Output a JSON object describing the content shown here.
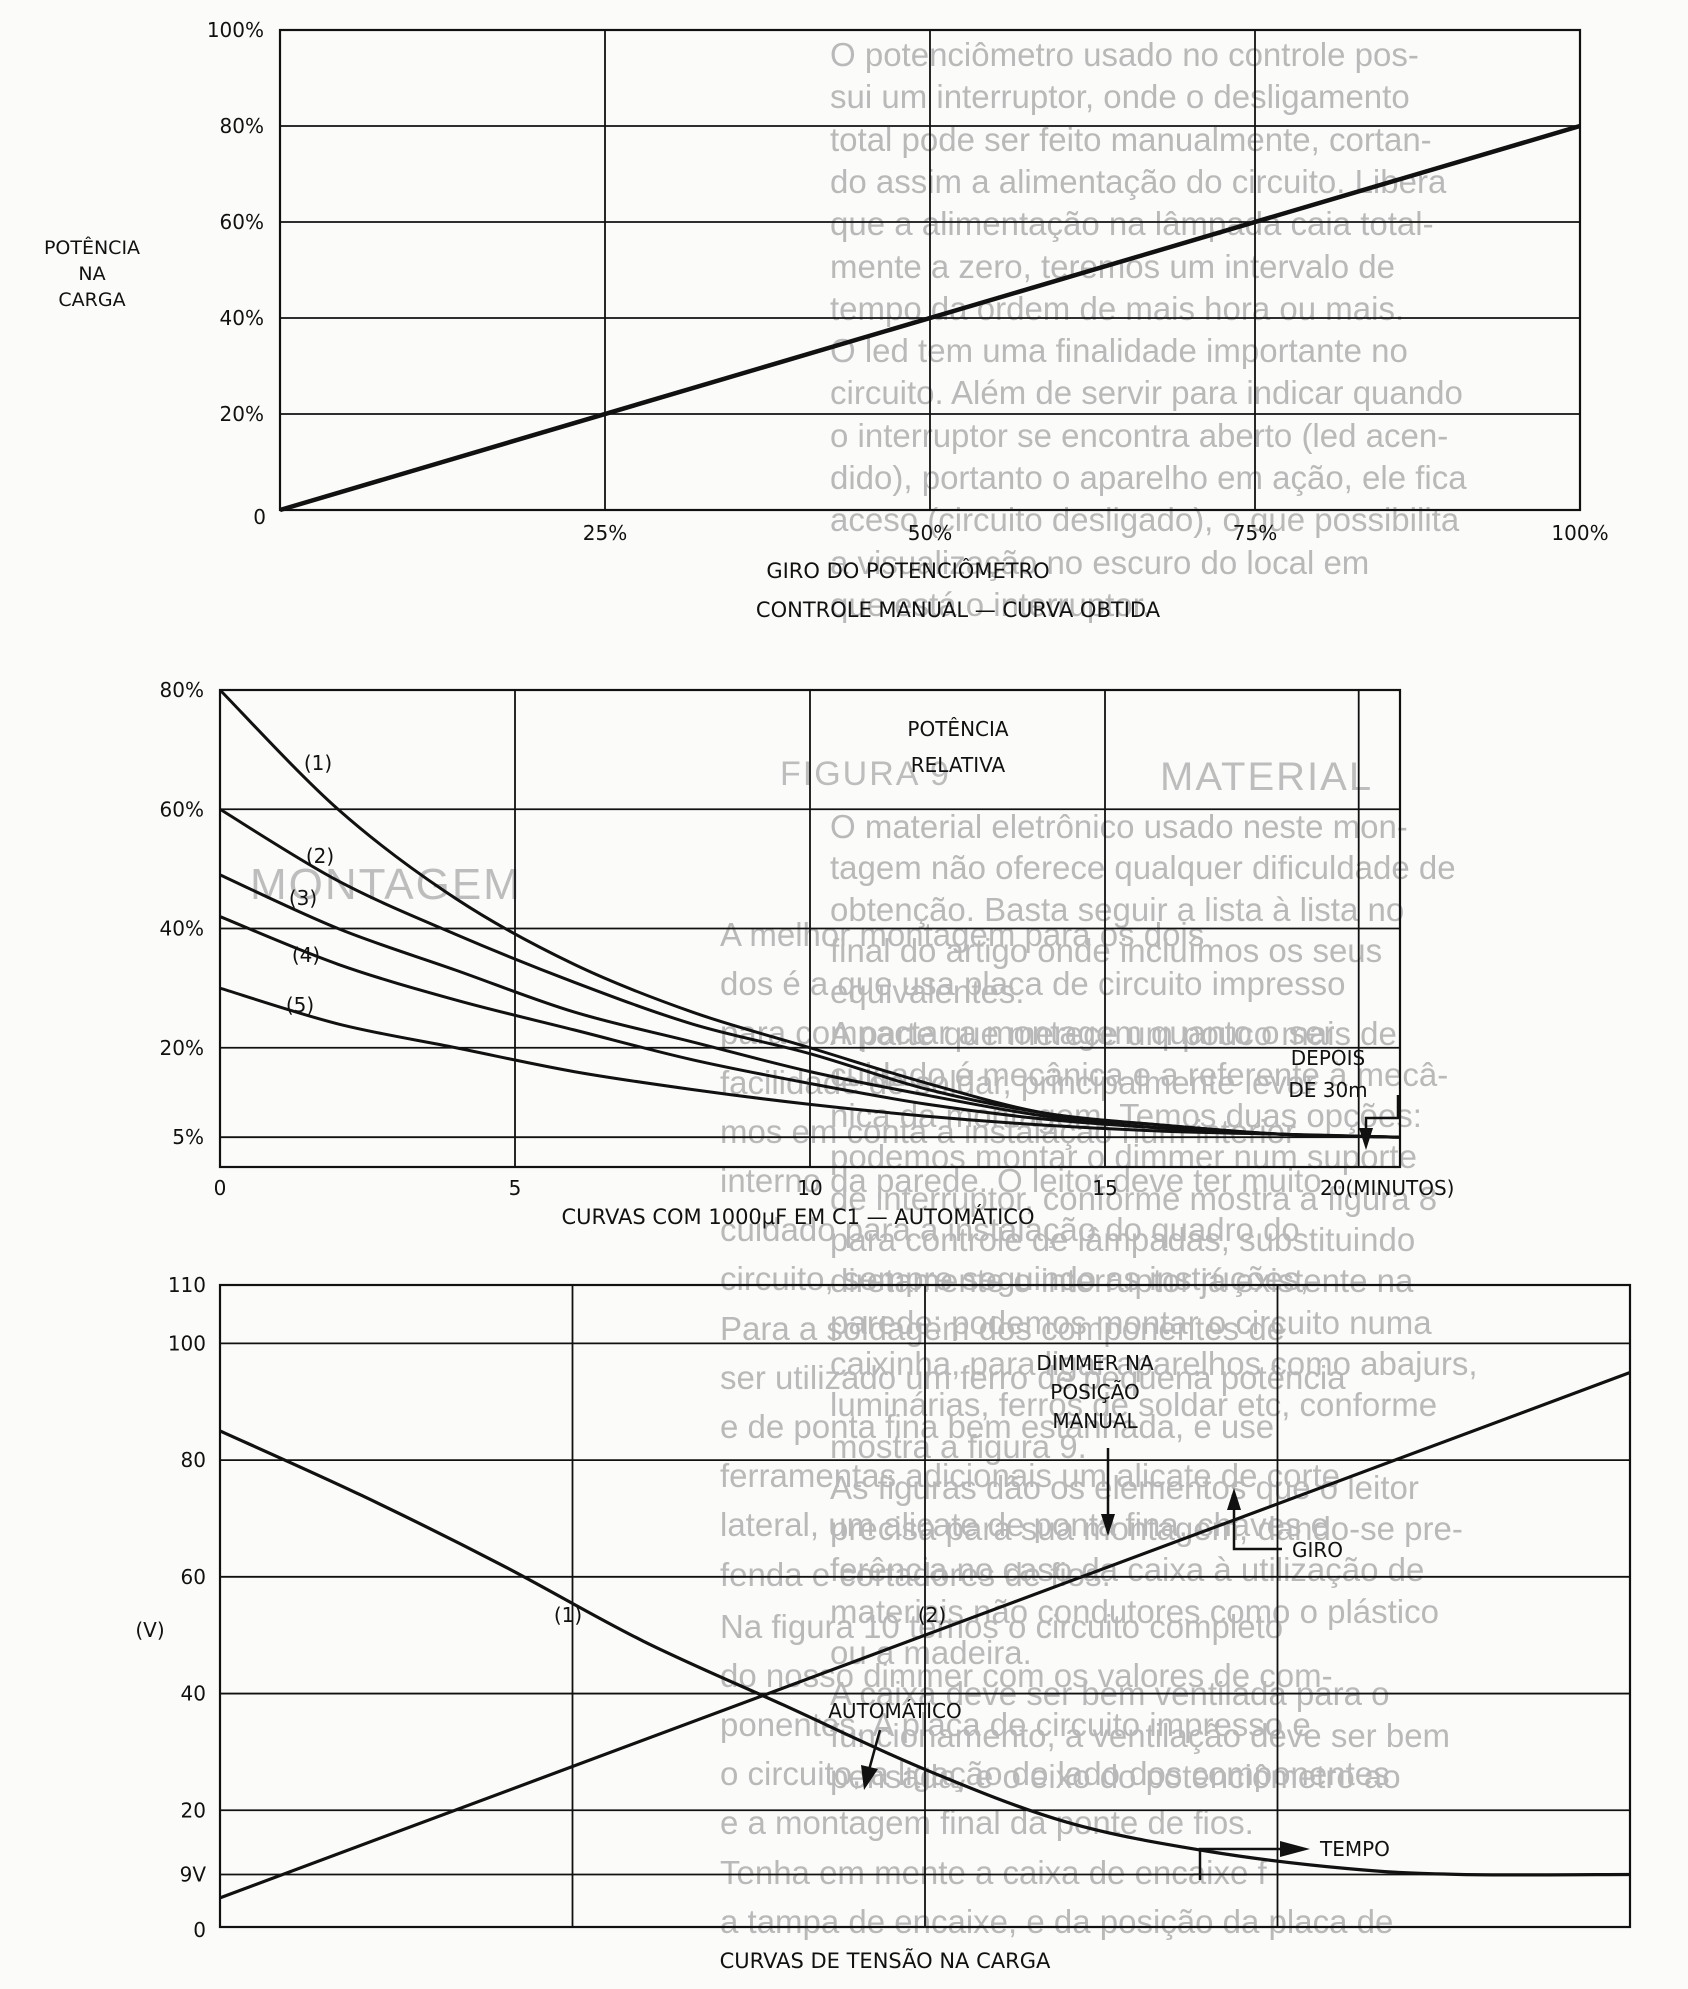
{
  "charts": [
    {
      "type": "line",
      "ylabel": [
        "POTÊNCIA",
        "NA",
        "CARGA"
      ],
      "xlabel": "GIRO DO POTENCIÔMETRO",
      "title": "CONTROLE MANUAL — CURVA OBTIDA",
      "xlim": [
        0,
        100
      ],
      "ylim": [
        0,
        100
      ],
      "x_ticks": [
        {
          "v": 25,
          "t": "25%"
        },
        {
          "v": 50,
          "t": "50%"
        },
        {
          "v": 75,
          "t": "75%"
        },
        {
          "v": 100,
          "t": "100%"
        }
      ],
      "y_ticks": [
        {
          "v": 20,
          "t": "20%"
        },
        {
          "v": 40,
          "t": "40%"
        },
        {
          "v": 60,
          "t": "60%"
        },
        {
          "v": 80,
          "t": "80%"
        },
        {
          "v": 100,
          "t": "100%"
        }
      ],
      "origin_label": "0",
      "series": [
        {
          "x": [
            0,
            100
          ],
          "y": [
            0,
            80
          ]
        }
      ]
    },
    {
      "type": "line",
      "title": "CURVAS COM 1000µF EM C1 — AUTOMÁTICO",
      "annotation_title": [
        "POTÊNCIA",
        "RELATIVA"
      ],
      "annotation_depois": [
        "DEPOIS",
        "DE 30m"
      ],
      "xlim": [
        0,
        20
      ],
      "ylim": [
        0,
        80
      ],
      "x_ticks": [
        {
          "v": 0,
          "t": "0"
        },
        {
          "v": 5,
          "t": "5"
        },
        {
          "v": 10,
          "t": "10"
        },
        {
          "v": 15,
          "t": "15"
        },
        {
          "v": 20,
          "t": "20(MINUTOS)"
        }
      ],
      "y_ticks": [
        {
          "v": 5,
          "t": "5%"
        },
        {
          "v": 20,
          "t": "20%"
        },
        {
          "v": 40,
          "t": "40%"
        },
        {
          "v": 60,
          "t": "60%"
        },
        {
          "v": 80,
          "t": "80%"
        }
      ],
      "series": [
        {
          "name": "(1)",
          "x": [
            0,
            2,
            4,
            6,
            8,
            10,
            12,
            14,
            16,
            18,
            20
          ],
          "y": [
            80,
            60,
            45,
            34,
            26,
            20,
            14,
            9,
            7,
            5.5,
            5
          ]
        },
        {
          "name": "(2)",
          "x": [
            0,
            2,
            4,
            6,
            8,
            10,
            12,
            14,
            16,
            18,
            20
          ],
          "y": [
            60,
            48,
            39,
            31,
            24,
            19,
            13,
            9,
            7,
            5.5,
            5
          ]
        },
        {
          "name": "(3)",
          "x": [
            0,
            2,
            4,
            6,
            8,
            10,
            12,
            14,
            16,
            18,
            20
          ],
          "y": [
            49,
            40,
            33,
            26,
            21,
            16,
            12,
            8.5,
            6.5,
            5.5,
            5
          ]
        },
        {
          "name": "(4)",
          "x": [
            0,
            2,
            4,
            6,
            8,
            10,
            12,
            14,
            16,
            18,
            20
          ],
          "y": [
            42,
            34,
            28,
            23,
            18,
            14,
            10.5,
            8,
            6.5,
            5.5,
            5
          ]
        },
        {
          "name": "(5)",
          "x": [
            0,
            2,
            4,
            6,
            8,
            10,
            12,
            14,
            16,
            18,
            20
          ],
          "y": [
            30,
            24,
            20,
            16,
            13,
            10.5,
            8.5,
            7,
            6,
            5.5,
            5
          ]
        }
      ]
    },
    {
      "type": "line",
      "title": "CURVAS DE TENSÃO NA CARGA",
      "ylabel": "(V)",
      "annotation_dimmer": [
        "DIMMER NA",
        "POSIÇÃO",
        "MANUAL"
      ],
      "annotation_giro": "GIRO",
      "annotation_auto": "AUTOMÁTICO",
      "annotation_tempo": "TEMPO",
      "origin_label": "0",
      "xlim": [
        0,
        100
      ],
      "ylim": [
        0,
        110
      ],
      "y_ticks": [
        {
          "v": 9,
          "t": "9V"
        },
        {
          "v": 20,
          "t": "20"
        },
        {
          "v": 40,
          "t": "40"
        },
        {
          "v": 60,
          "t": "60"
        },
        {
          "v": 80,
          "t": "80"
        },
        {
          "v": 100,
          "t": "100"
        },
        {
          "v": 110,
          "t": "110"
        }
      ],
      "series": [
        {
          "name": "(1)",
          "x": [
            0,
            10,
            20,
            30,
            40,
            50,
            60,
            70,
            80,
            88,
            100
          ],
          "y": [
            85,
            74,
            62,
            49,
            38,
            27,
            18,
            13,
            10,
            9,
            9
          ]
        },
        {
          "name": "(2)",
          "x": [
            0,
            100
          ],
          "y": [
            5,
            95
          ]
        }
      ]
    }
  ],
  "background_text": {
    "right": [
      "O potenciômetro usado no controle pos-",
      "sui um interruptor, onde o desligamento",
      "total pode ser feito manualmente, cortan-",
      "do assim a alimentação do circuito. Libera",
      "que a alimentação na lâmpada caia total-",
      "mente a zero, teremos um intervalo de",
      "tempo da ordem de mais hora ou mais.",
      "O led tem uma finalidade importante no",
      "circuito. Além de servir para indicar quando",
      "o interruptor se encontra aberto (led acen-",
      "dido), portanto o aparelho em ação, ele fica",
      "aceso (circuito desligado), o que possibilita",
      "a visualização no escuro do local em",
      "que está o interruptor.",
      "MATERIAL",
      "O material eletrônico usado neste mon-",
      "tagem não oferece qualquer dificuldade de",
      "obtenção. Basta seguir a lista à lista no",
      "final do artigo onde incluímos os seus",
      "equivalentes.",
      "A parte que merece um pouco mais de",
      "cuidado é mecânica e a referente à mecâ-",
      "nica da montagem. Temos duas opções:",
      "podemos montar o dimmer num suporte",
      "de interruptor, conforme mostra a figura 8",
      "para controle de lâmpadas, substituindo",
      "diretamente o interruptor já existente na",
      "parede; podemos montar o circuito numa",
      "caixinha, para ligar aparelhos como abajurs,",
      "luminárias, ferros de soldar etc, conforme",
      "mostra a figura 9.",
      "As figuras dão os elementos que o leitor",
      "precisa para sua montagem, dando-se pre-",
      "ferência no caso da caixa à utilização de",
      "materiais não condutores como o plástico",
      "ou a madeira.",
      "A caixa deve ser bem ventilada para o",
      "funcionamento, a ventilação deve ser bem",
      "pensada, e o eixo do potenciômetro ao"
    ],
    "left": [
      "A melhor montagem para os dois",
      "dos é a que usa placa de circuito impresso",
      "para compactar a montagem quanto o ser",
      "facilidade de soldar, principalmente levar",
      "mos em conta a instalação num interior",
      "interno da parede. O leitor deve ter muito",
      "cuidado para a instalação do quadro do",
      "circuito, sempre seguindo as instruções,",
      "Para a soldagem dos componentes de",
      "ser utilizado um ferro de pequena potência",
      "e de ponta fina bem estanhada, e use",
      "ferramentas adicionais um alicate de corte",
      "lateral, um alicate de ponta fina, chaves e",
      "fenda e cortadores de fios.",
      "Na figura 10 temos o circuito completo",
      "do nosso dimmer com os valores de com-",
      "ponentes. A placa de circuito impresso e",
      "o circuito, a ligação do lado dos componentes",
      "e a montagem final da ponte de fios.",
      "Tenha em mente a caixa de encaixe f",
      "a tampa de encaixe, e da posição da placa de"
    ],
    "headings": [
      "FIGURA 9",
      "MONTAGEM"
    ]
  }
}
